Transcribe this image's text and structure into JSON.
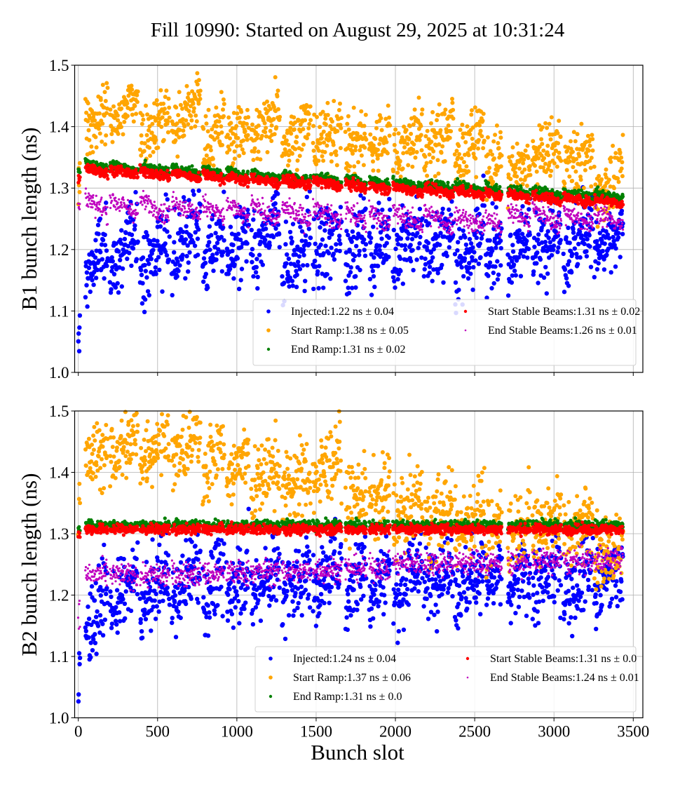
{
  "chart_data": [
    {
      "type": "scatter",
      "title": "Fill 10990: Started on August 29, 2025 at 10:31:24",
      "xlabel": "",
      "ylabel": "B1 bunch length (ns)",
      "xlim": [
        -25,
        3560
      ],
      "ylim": [
        1.0,
        1.5
      ],
      "xticks": [
        "0",
        "500",
        "1000",
        "1500",
        "2000",
        "2500",
        "3000",
        "3500"
      ],
      "yticks": [
        "1.0",
        "1.1",
        "1.2",
        "1.3",
        "1.4",
        "1.5"
      ],
      "show_xtick_labels": false,
      "grid": true,
      "legend_position": "lower-right",
      "trains": [
        [
          0,
          10
        ],
        [
          45,
          185
        ],
        [
          200,
          375
        ],
        [
          390,
          575
        ],
        [
          590,
          770
        ],
        [
          785,
          920
        ],
        [
          935,
          1075
        ],
        [
          1090,
          1270
        ],
        [
          1285,
          1465
        ],
        [
          1480,
          1660
        ],
        [
          1685,
          1815
        ],
        [
          1835,
          1965
        ],
        [
          1985,
          2170
        ],
        [
          2180,
          2365
        ],
        [
          2375,
          2560
        ],
        [
          2570,
          2670
        ],
        [
          2710,
          2850
        ],
        [
          2865,
          3045
        ],
        [
          3060,
          3245
        ],
        [
          3255,
          3435
        ]
      ],
      "series": [
        {
          "name": "Injected",
          "legend": "Injected:1.22 ns ± 0.04",
          "color": "#0000ff",
          "spread": 0.03,
          "train_start": [
            1.02,
            1.15,
            1.16,
            1.16,
            1.17,
            1.17,
            1.17,
            1.18,
            1.16,
            1.19,
            1.18,
            1.18,
            1.18,
            1.19,
            1.17,
            1.17,
            1.18,
            1.19,
            1.19,
            1.18
          ],
          "train_end": [
            1.07,
            1.22,
            1.25,
            1.24,
            1.27,
            1.24,
            1.24,
            1.26,
            1.23,
            1.24,
            1.24,
            1.24,
            1.25,
            1.24,
            1.24,
            1.23,
            1.24,
            1.25,
            1.25,
            1.24
          ]
        },
        {
          "name": "Start Ramp",
          "legend": "Start Ramp:1.38 ns ± 0.05",
          "color": "#ffa500",
          "spread": 0.025,
          "train_start": [
            1.31,
            1.39,
            1.39,
            1.38,
            1.39,
            1.36,
            1.37,
            1.37,
            1.37,
            1.37,
            1.36,
            1.36,
            1.35,
            1.35,
            1.34,
            1.33,
            1.32,
            1.34,
            1.33,
            1.29
          ],
          "train_end": [
            1.31,
            1.43,
            1.46,
            1.43,
            1.45,
            1.41,
            1.41,
            1.44,
            1.41,
            1.4,
            1.39,
            1.39,
            1.4,
            1.41,
            1.4,
            1.35,
            1.34,
            1.37,
            1.36,
            1.32
          ]
        },
        {
          "name": "End Ramp",
          "legend": "End Ramp:1.31 ns ± 0.02",
          "color": "#008000",
          "spread": 0.004,
          "train_start": [
            1.325,
            1.342,
            1.339,
            1.336,
            1.334,
            1.331,
            1.328,
            1.325,
            1.322,
            1.32,
            1.317,
            1.314,
            1.311,
            1.308,
            1.306,
            1.303,
            1.3,
            1.297,
            1.294,
            1.292
          ],
          "train_end": [
            1.325,
            1.332,
            1.329,
            1.326,
            1.324,
            1.321,
            1.318,
            1.315,
            1.312,
            1.31,
            1.307,
            1.304,
            1.301,
            1.298,
            1.296,
            1.293,
            1.29,
            1.287,
            1.284,
            1.282
          ]
        },
        {
          "name": "Start Stable Beams",
          "legend": "Start Stable Beams:1.31 ns ± 0.02",
          "color": "#ff0000",
          "spread": 0.004,
          "train_start": [
            1.315,
            1.334,
            1.331,
            1.328,
            1.326,
            1.323,
            1.32,
            1.317,
            1.314,
            1.312,
            1.309,
            1.306,
            1.303,
            1.3,
            1.298,
            1.295,
            1.292,
            1.289,
            1.286,
            1.284
          ],
          "train_end": [
            1.315,
            1.324,
            1.321,
            1.318,
            1.316,
            1.313,
            1.31,
            1.307,
            1.304,
            1.302,
            1.299,
            1.296,
            1.293,
            1.29,
            1.288,
            1.285,
            1.282,
            1.279,
            1.276,
            1.274
          ]
        },
        {
          "name": "End Stable Beams",
          "legend": "End Stable Beams:1.26 ns ± 0.01",
          "color": "#bf00bf",
          "spread": 0.008,
          "train_start": [
            1.27,
            1.285,
            1.283,
            1.281,
            1.279,
            1.277,
            1.275,
            1.273,
            1.271,
            1.269,
            1.267,
            1.265,
            1.263,
            1.261,
            1.259,
            1.257,
            1.268,
            1.266,
            1.264,
            1.262
          ],
          "train_end": [
            1.27,
            1.26,
            1.258,
            1.256,
            1.254,
            1.252,
            1.25,
            1.248,
            1.246,
            1.244,
            1.242,
            1.24,
            1.238,
            1.236,
            1.234,
            1.232,
            1.243,
            1.241,
            1.239,
            1.24
          ]
        }
      ]
    },
    {
      "type": "scatter",
      "title": "",
      "xlabel": "Bunch slot",
      "ylabel": "B2 bunch length (ns)",
      "xlim": [
        -25,
        3560
      ],
      "ylim": [
        1.0,
        1.5
      ],
      "xticks": [
        "0",
        "500",
        "1000",
        "1500",
        "2000",
        "2500",
        "3000",
        "3500"
      ],
      "yticks": [
        "1.0",
        "1.1",
        "1.2",
        "1.3",
        "1.4",
        "1.5"
      ],
      "show_xtick_labels": true,
      "grid": true,
      "legend_position": "lower-right",
      "trains": [
        [
          0,
          10
        ],
        [
          45,
          185
        ],
        [
          200,
          375
        ],
        [
          390,
          575
        ],
        [
          590,
          770
        ],
        [
          785,
          920
        ],
        [
          935,
          1075
        ],
        [
          1090,
          1270
        ],
        [
          1285,
          1465
        ],
        [
          1480,
          1660
        ],
        [
          1685,
          1815
        ],
        [
          1835,
          1965
        ],
        [
          1985,
          2170
        ],
        [
          2180,
          2365
        ],
        [
          2375,
          2560
        ],
        [
          2570,
          2670
        ],
        [
          2710,
          2850
        ],
        [
          2865,
          3045
        ],
        [
          3060,
          3245
        ],
        [
          3255,
          3435
        ]
      ],
      "series": [
        {
          "name": "Injected",
          "legend": "Injected:1.24 ns ± 0.04",
          "color": "#0000ff",
          "spread": 0.03,
          "train_start": [
            1.02,
            1.14,
            1.17,
            1.18,
            1.19,
            1.19,
            1.19,
            1.2,
            1.2,
            1.2,
            1.2,
            1.2,
            1.2,
            1.21,
            1.2,
            1.2,
            1.2,
            1.2,
            1.2,
            1.21
          ],
          "train_end": [
            1.1,
            1.21,
            1.24,
            1.25,
            1.26,
            1.25,
            1.26,
            1.25,
            1.25,
            1.27,
            1.26,
            1.25,
            1.26,
            1.26,
            1.25,
            1.24,
            1.25,
            1.26,
            1.26,
            1.25
          ]
        },
        {
          "name": "Start Ramp",
          "legend": "Start Ramp:1.37 ns ± 0.06",
          "color": "#ffa500",
          "spread": 0.03,
          "train_start": [
            1.32,
            1.41,
            1.42,
            1.42,
            1.41,
            1.4,
            1.38,
            1.37,
            1.37,
            1.38,
            1.34,
            1.34,
            1.32,
            1.31,
            1.3,
            1.29,
            1.3,
            1.3,
            1.29,
            1.26
          ],
          "train_end": [
            1.36,
            1.44,
            1.46,
            1.48,
            1.47,
            1.46,
            1.44,
            1.42,
            1.4,
            1.44,
            1.37,
            1.38,
            1.36,
            1.35,
            1.35,
            1.33,
            1.33,
            1.34,
            1.34,
            1.28
          ]
        },
        {
          "name": "End Ramp",
          "legend": "End Ramp:1.31 ns ± 0.0",
          "color": "#008000",
          "spread": 0.004,
          "train_start": [
            1.31,
            1.314,
            1.314,
            1.314,
            1.314,
            1.314,
            1.314,
            1.314,
            1.314,
            1.314,
            1.314,
            1.314,
            1.314,
            1.314,
            1.314,
            1.314,
            1.314,
            1.314,
            1.314,
            1.314
          ],
          "train_end": [
            1.31,
            1.314,
            1.314,
            1.314,
            1.314,
            1.314,
            1.314,
            1.314,
            1.314,
            1.314,
            1.314,
            1.314,
            1.314,
            1.314,
            1.314,
            1.314,
            1.314,
            1.314,
            1.314,
            1.314
          ]
        },
        {
          "name": "Start Stable Beams",
          "legend": "Start Stable Beams:1.31 ns ± 0.0",
          "color": "#ff0000",
          "spread": 0.004,
          "train_start": [
            1.3,
            1.307,
            1.307,
            1.307,
            1.307,
            1.307,
            1.307,
            1.307,
            1.307,
            1.307,
            1.307,
            1.307,
            1.307,
            1.307,
            1.307,
            1.307,
            1.307,
            1.307,
            1.307,
            1.307
          ],
          "train_end": [
            1.3,
            1.307,
            1.307,
            1.307,
            1.307,
            1.307,
            1.307,
            1.307,
            1.307,
            1.307,
            1.307,
            1.307,
            1.307,
            1.307,
            1.307,
            1.307,
            1.307,
            1.307,
            1.307,
            1.307
          ]
        },
        {
          "name": "End Stable Beams",
          "legend": "End Stable Beams:1.24 ns ± 0.01",
          "color": "#bf00bf",
          "spread": 0.01,
          "train_start": [
            1.17,
            1.233,
            1.232,
            1.232,
            1.233,
            1.235,
            1.236,
            1.238,
            1.238,
            1.242,
            1.243,
            1.244,
            1.252,
            1.253,
            1.253,
            1.252,
            1.252,
            1.255,
            1.255,
            1.258
          ],
          "train_end": [
            1.17,
            1.233,
            1.232,
            1.232,
            1.233,
            1.235,
            1.236,
            1.238,
            1.238,
            1.242,
            1.243,
            1.244,
            1.252,
            1.253,
            1.253,
            1.252,
            1.252,
            1.255,
            1.255,
            1.258
          ]
        }
      ]
    }
  ]
}
